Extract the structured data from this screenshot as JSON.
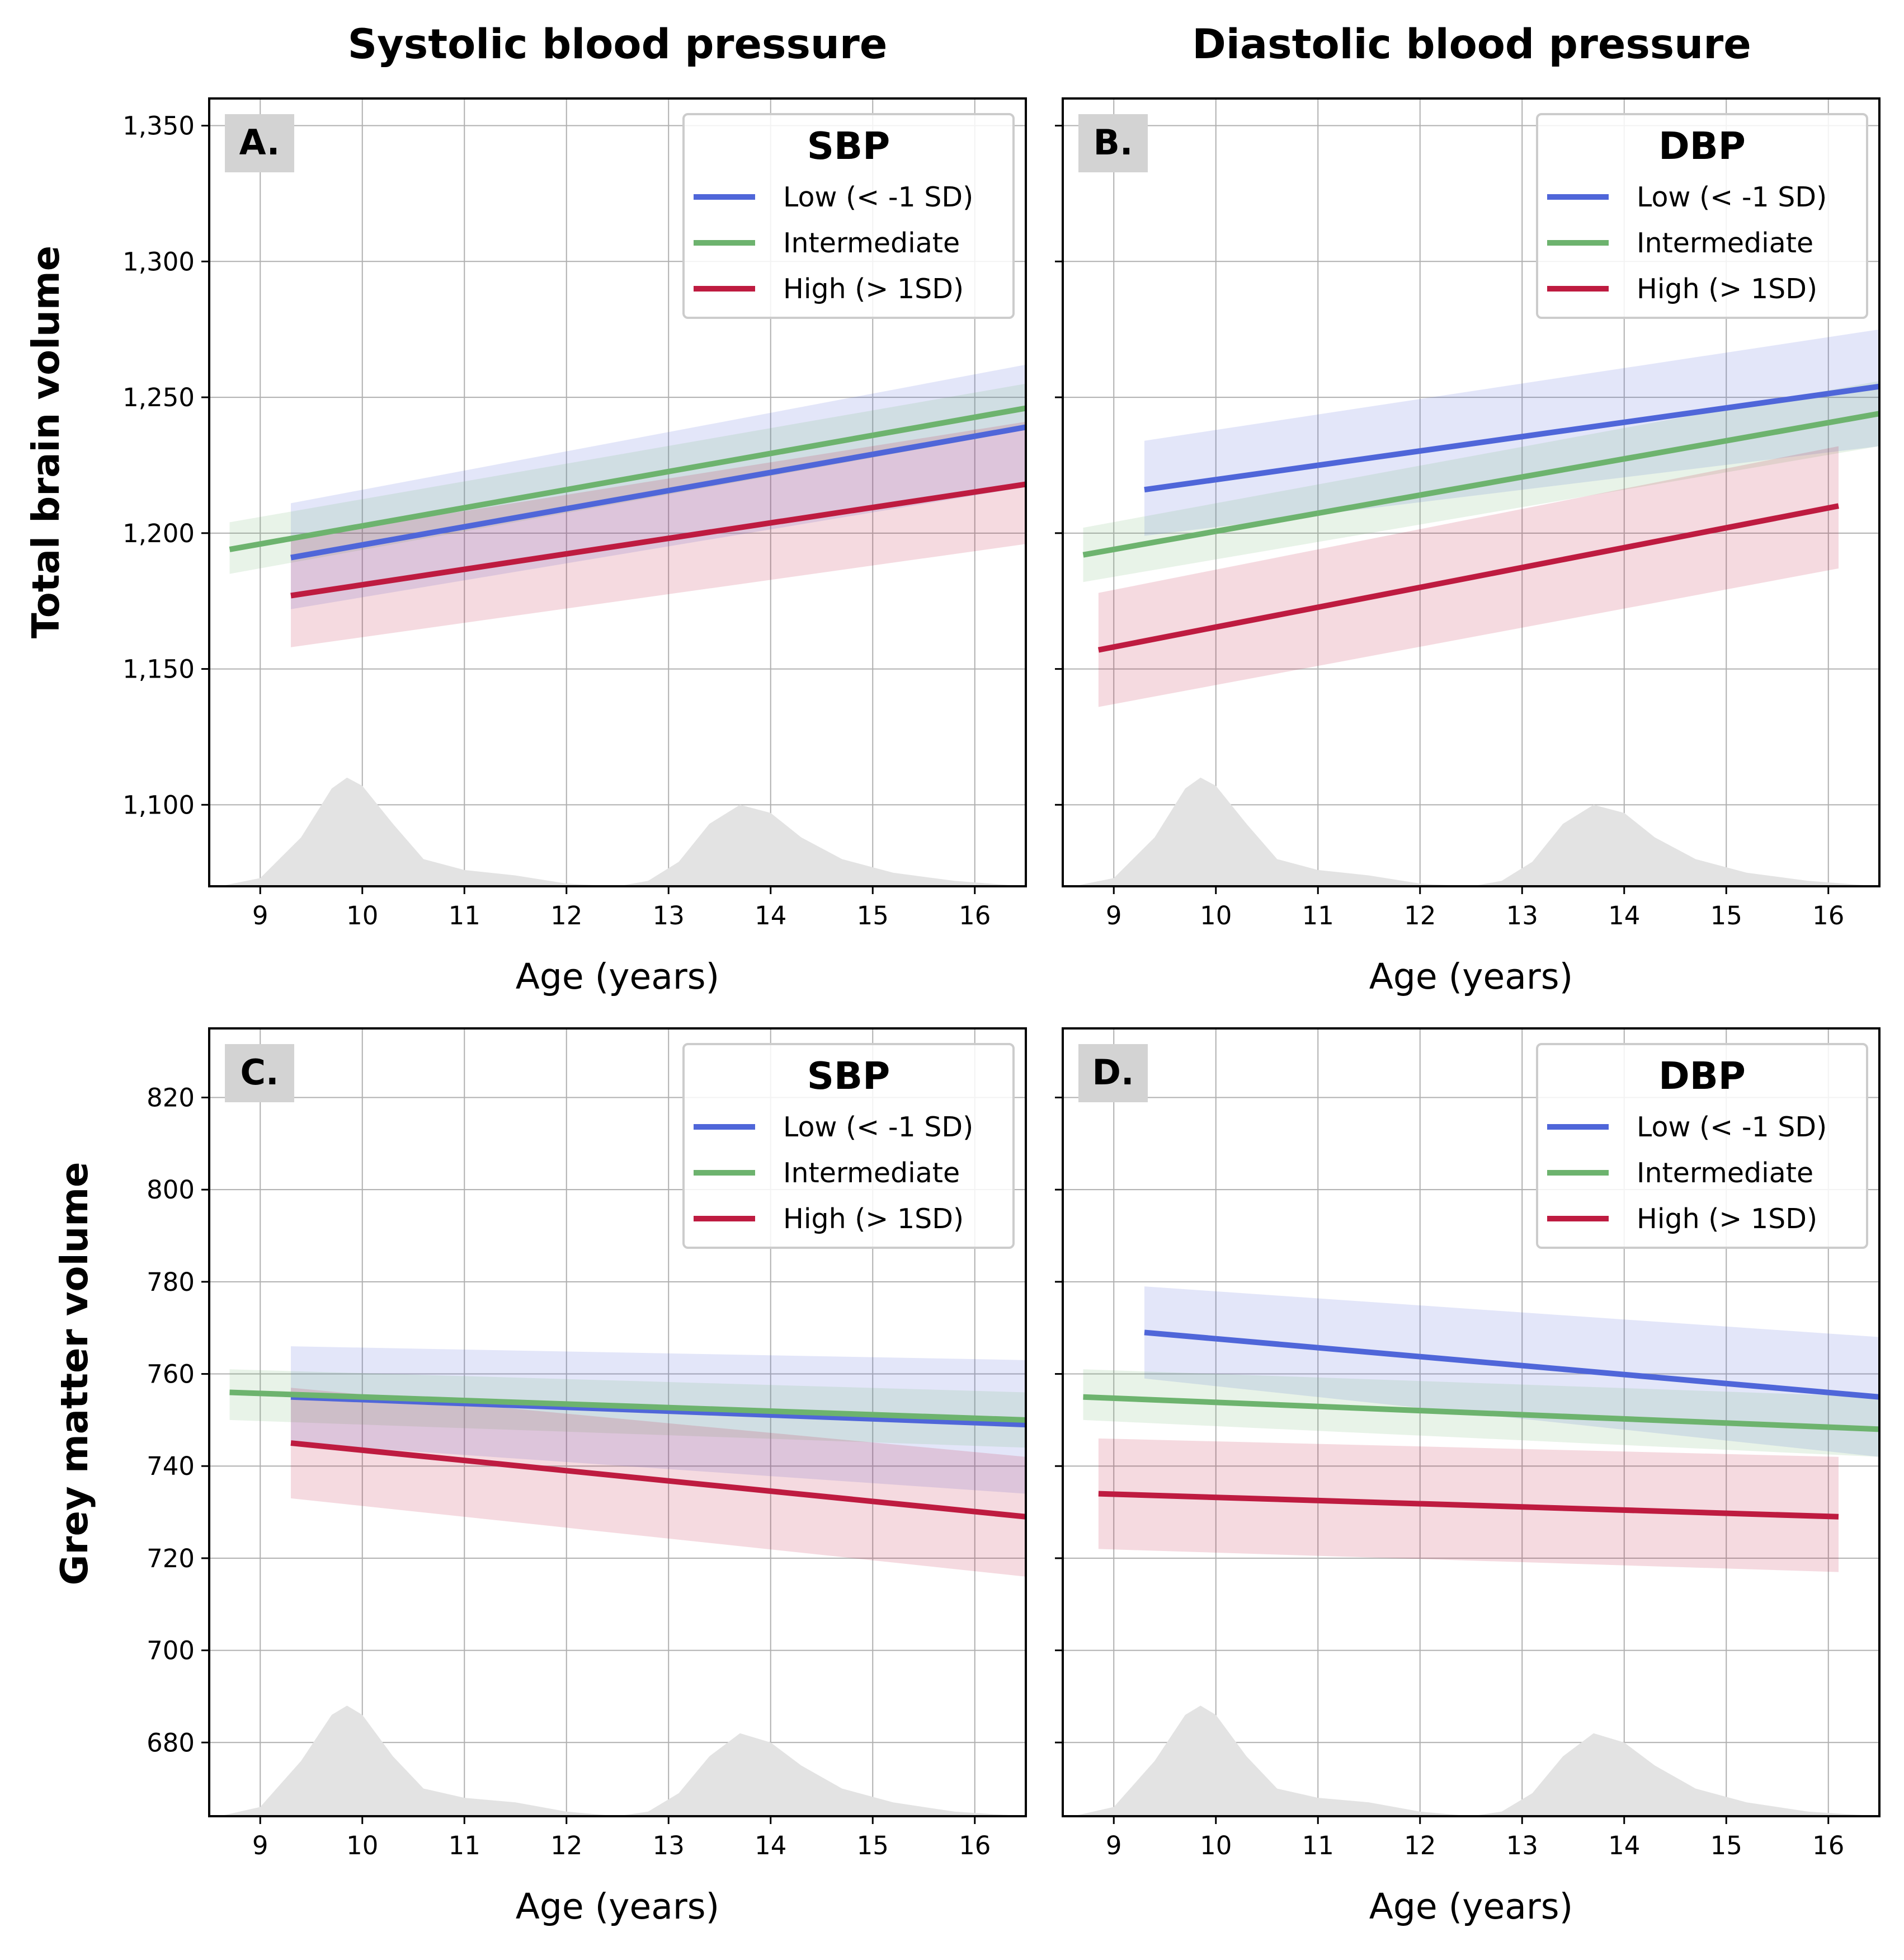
{
  "column_titles": [
    "Systolic blood pressure",
    "Diastolic blood pressure"
  ],
  "row_labels": [
    "Total brain volume",
    "Grey matter volume"
  ],
  "chart_data": [
    {
      "type": "line",
      "panel": "A.",
      "column": "Systolic blood pressure",
      "legend_title": "SBP",
      "legend_position": "top-right",
      "xlabel": "Age (years)",
      "ylabel": "Total brain volume",
      "xlim": [
        8.5,
        16.5
      ],
      "ylim": [
        1070,
        1360
      ],
      "x_ticks": [
        9,
        10,
        11,
        12,
        13,
        14,
        15,
        16
      ],
      "y_ticks": [
        1100,
        1150,
        1200,
        1250,
        1300,
        1350
      ],
      "y_tick_labels": [
        "1,100",
        "1,150",
        "1,200",
        "1,250",
        "1,300",
        "1,350"
      ],
      "grid": true,
      "series": [
        {
          "name": "Low (< -1 SD)",
          "color": "#4f66d9",
          "x": [
            9.3,
            16.5
          ],
          "y": [
            1191,
            1239
          ],
          "ci_lower": [
            1172,
            1217
          ],
          "ci_upper": [
            1211,
            1262
          ]
        },
        {
          "name": "Intermediate",
          "color": "#6db36e",
          "x": [
            8.7,
            16.5
          ],
          "y": [
            1194,
            1246
          ],
          "ci_lower": [
            1185,
            1238
          ],
          "ci_upper": [
            1204,
            1255
          ]
        },
        {
          "name": "High (> 1SD)",
          "color": "#be1b40",
          "x": [
            9.3,
            16.5
          ],
          "y": [
            1177,
            1218
          ],
          "ci_lower": [
            1158,
            1196
          ],
          "ci_upper": [
            1198,
            1241
          ]
        }
      ],
      "age_density": {
        "x": [
          8.6,
          9.0,
          9.4,
          9.7,
          9.85,
          10.0,
          10.3,
          10.6,
          11.0,
          11.5,
          12.0,
          12.5,
          12.8,
          13.1,
          13.4,
          13.7,
          14.0,
          14.3,
          14.7,
          15.2,
          15.8,
          16.5
        ],
        "y": [
          1070,
          1073,
          1088,
          1106,
          1110,
          1107,
          1093,
          1080,
          1076,
          1074,
          1071,
          1070,
          1072,
          1079,
          1093,
          1100,
          1097,
          1088,
          1080,
          1075,
          1072,
          1070
        ]
      }
    },
    {
      "type": "line",
      "panel": "B.",
      "column": "Diastolic blood pressure",
      "legend_title": "DBP",
      "legend_position": "top-right",
      "xlabel": "Age (years)",
      "ylabel": "Total brain volume",
      "xlim": [
        8.5,
        16.5
      ],
      "ylim": [
        1070,
        1360
      ],
      "x_ticks": [
        9,
        10,
        11,
        12,
        13,
        14,
        15,
        16
      ],
      "y_ticks": [
        1100,
        1150,
        1200,
        1250,
        1300,
        1350
      ],
      "y_tick_labels": [
        "",
        "",
        "",
        "",
        "",
        ""
      ],
      "grid": true,
      "series": [
        {
          "name": "Low (< -1 SD)",
          "color": "#4f66d9",
          "x": [
            9.3,
            16.5
          ],
          "y": [
            1216,
            1254
          ],
          "ci_lower": [
            1199,
            1232
          ],
          "ci_upper": [
            1234,
            1275
          ]
        },
        {
          "name": "Intermediate",
          "color": "#6db36e",
          "x": [
            8.7,
            16.5
          ],
          "y": [
            1192,
            1244
          ],
          "ci_lower": [
            1182,
            1232
          ],
          "ci_upper": [
            1202,
            1256
          ]
        },
        {
          "name": "High (> 1SD)",
          "color": "#be1b40",
          "x": [
            8.85,
            16.1
          ],
          "y": [
            1157,
            1210
          ],
          "ci_lower": [
            1136,
            1187
          ],
          "ci_upper": [
            1178,
            1232
          ]
        }
      ],
      "age_density": {
        "x": [
          8.6,
          9.0,
          9.4,
          9.7,
          9.85,
          10.0,
          10.3,
          10.6,
          11.0,
          11.5,
          12.0,
          12.5,
          12.8,
          13.1,
          13.4,
          13.7,
          14.0,
          14.3,
          14.7,
          15.2,
          15.8,
          16.5
        ],
        "y": [
          1070,
          1073,
          1088,
          1106,
          1110,
          1107,
          1093,
          1080,
          1076,
          1074,
          1071,
          1070,
          1072,
          1079,
          1093,
          1100,
          1097,
          1088,
          1080,
          1075,
          1072,
          1070
        ]
      }
    },
    {
      "type": "line",
      "panel": "C.",
      "column": "Systolic blood pressure",
      "legend_title": "SBP",
      "legend_position": "top-right",
      "xlabel": "Age (years)",
      "ylabel": "Grey matter volume",
      "xlim": [
        8.5,
        16.5
      ],
      "ylim": [
        664,
        835
      ],
      "x_ticks": [
        9,
        10,
        11,
        12,
        13,
        14,
        15,
        16
      ],
      "y_ticks": [
        680,
        700,
        720,
        740,
        760,
        780,
        800,
        820
      ],
      "y_tick_labels": [
        "680",
        "700",
        "720",
        "740",
        "760",
        "780",
        "800",
        "820"
      ],
      "grid": true,
      "series": [
        {
          "name": "Low (< -1 SD)",
          "color": "#4f66d9",
          "x": [
            9.3,
            16.5
          ],
          "y": [
            755,
            749
          ],
          "ci_lower": [
            745,
            734
          ],
          "ci_upper": [
            766,
            763
          ]
        },
        {
          "name": "Intermediate",
          "color": "#6db36e",
          "x": [
            8.7,
            16.5
          ],
          "y": [
            756,
            750
          ],
          "ci_lower": [
            750,
            744
          ],
          "ci_upper": [
            761,
            756
          ]
        },
        {
          "name": "High (> 1SD)",
          "color": "#be1b40",
          "x": [
            9.3,
            16.5
          ],
          "y": [
            745,
            729
          ],
          "ci_lower": [
            733,
            716
          ],
          "ci_upper": [
            757,
            742
          ]
        }
      ],
      "age_density": {
        "x": [
          8.6,
          9.0,
          9.4,
          9.7,
          9.85,
          10.0,
          10.3,
          10.6,
          11.0,
          11.5,
          12.0,
          12.5,
          12.8,
          13.1,
          13.4,
          13.7,
          14.0,
          14.3,
          14.7,
          15.2,
          15.8,
          16.5
        ],
        "y": [
          664,
          666,
          676,
          686,
          688,
          686,
          677,
          670,
          668,
          667,
          665,
          664,
          665,
          669,
          677,
          682,
          680,
          675,
          670,
          667,
          665,
          664
        ]
      }
    },
    {
      "type": "line",
      "panel": "D.",
      "column": "Diastolic blood pressure",
      "legend_title": "DBP",
      "legend_position": "top-right",
      "xlabel": "Age (years)",
      "ylabel": "Grey matter volume",
      "xlim": [
        8.5,
        16.5
      ],
      "ylim": [
        664,
        835
      ],
      "x_ticks": [
        9,
        10,
        11,
        12,
        13,
        14,
        15,
        16
      ],
      "y_ticks": [
        680,
        700,
        720,
        740,
        760,
        780,
        800,
        820
      ],
      "y_tick_labels": [
        "",
        "",
        "",
        "",
        "",
        "",
        "",
        ""
      ],
      "grid": true,
      "series": [
        {
          "name": "Low (< -1 SD)",
          "color": "#4f66d9",
          "x": [
            9.3,
            16.5
          ],
          "y": [
            769,
            755
          ],
          "ci_lower": [
            759,
            742
          ],
          "ci_upper": [
            779,
            768
          ]
        },
        {
          "name": "Intermediate",
          "color": "#6db36e",
          "x": [
            8.7,
            16.5
          ],
          "y": [
            755,
            748
          ],
          "ci_lower": [
            750,
            742
          ],
          "ci_upper": [
            761,
            755
          ]
        },
        {
          "name": "High (> 1SD)",
          "color": "#be1b40",
          "x": [
            8.85,
            16.1
          ],
          "y": [
            734,
            729
          ],
          "ci_lower": [
            722,
            717
          ],
          "ci_upper": [
            746,
            742
          ]
        }
      ],
      "age_density": {
        "x": [
          8.6,
          9.0,
          9.4,
          9.7,
          9.85,
          10.0,
          10.3,
          10.6,
          11.0,
          11.5,
          12.0,
          12.5,
          12.8,
          13.1,
          13.4,
          13.7,
          14.0,
          14.3,
          14.7,
          15.2,
          15.8,
          16.5
        ],
        "y": [
          664,
          666,
          676,
          686,
          688,
          686,
          677,
          670,
          668,
          667,
          665,
          664,
          665,
          669,
          677,
          682,
          680,
          675,
          670,
          667,
          665,
          664
        ]
      }
    }
  ],
  "colors": {
    "density_fill": "#e3e3e3",
    "grid": "#b0b0b0",
    "panel_letter_bg": "#d3d3d3",
    "legend_border": "#cccccc"
  }
}
